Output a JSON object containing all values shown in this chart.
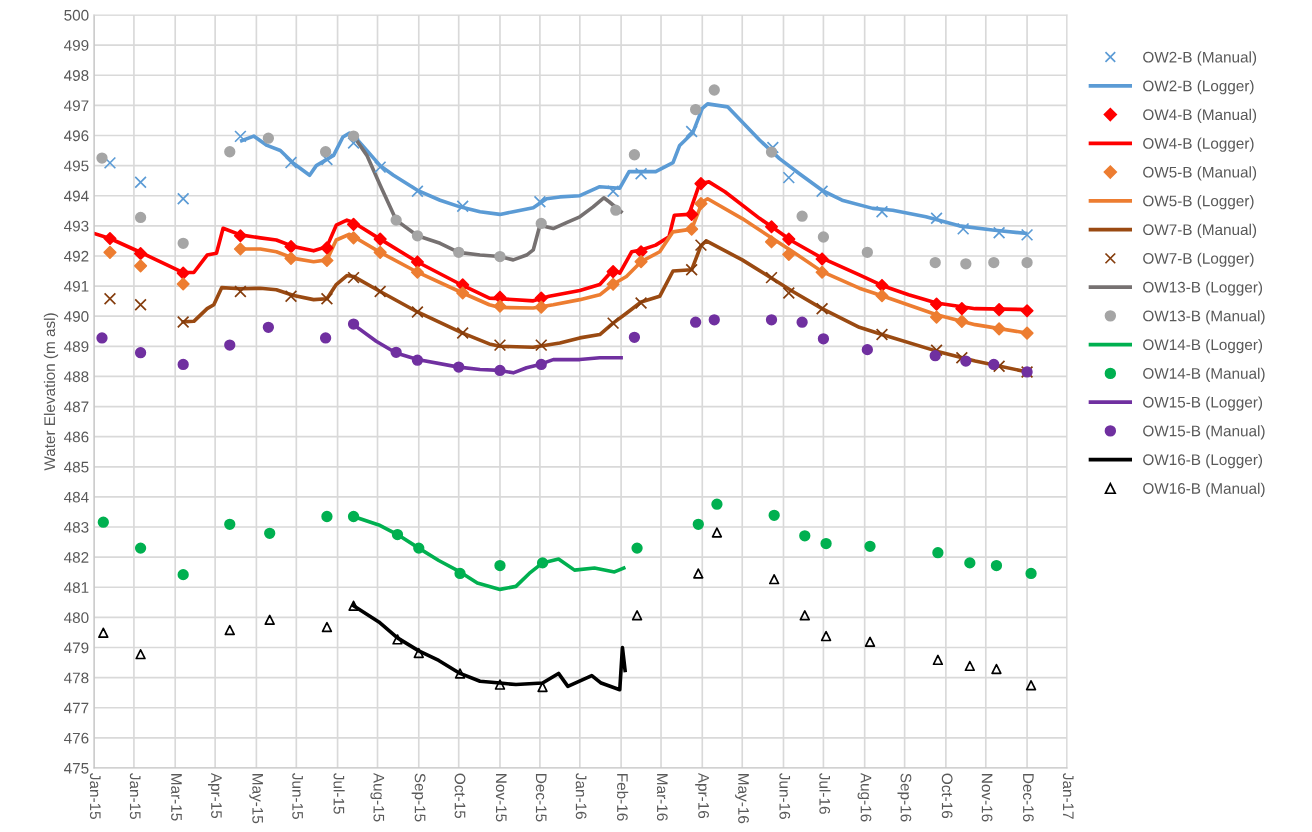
{
  "chart_data": {
    "type": "line",
    "ylabel": "Water Elevation (m asl)",
    "xlim": [
      "2015-01-01",
      "2017-01-01"
    ],
    "xticks": [
      {
        "value": "2015-01-01",
        "label": "Jan-15"
      },
      {
        "value": "2015-01-31",
        "label": "Jan-15"
      },
      {
        "value": "2015-03-03",
        "label": "Mar-15"
      },
      {
        "value": "2015-04-02",
        "label": "Apr-15"
      },
      {
        "value": "2015-05-03",
        "label": "May-15"
      },
      {
        "value": "2015-06-02",
        "label": "Jun-15"
      },
      {
        "value": "2015-07-03",
        "label": "Jul-15"
      },
      {
        "value": "2015-08-02",
        "label": "Aug-15"
      },
      {
        "value": "2015-09-02",
        "label": "Sep-15"
      },
      {
        "value": "2015-10-02",
        "label": "Oct-15"
      },
      {
        "value": "2015-11-02",
        "label": "Nov-15"
      },
      {
        "value": "2015-12-02",
        "label": "Dec-15"
      },
      {
        "value": "2016-01-01",
        "label": "Jan-16"
      },
      {
        "value": "2016-02-01",
        "label": "Feb-16"
      },
      {
        "value": "2016-03-02",
        "label": "Mar-16"
      },
      {
        "value": "2016-04-02",
        "label": "Apr-16"
      },
      {
        "value": "2016-05-02",
        "label": "May-16"
      },
      {
        "value": "2016-06-02",
        "label": "Jun-16"
      },
      {
        "value": "2016-07-02",
        "label": "Jul-16"
      },
      {
        "value": "2016-08-02",
        "label": "Aug-16"
      },
      {
        "value": "2016-09-01",
        "label": "Sep-16"
      },
      {
        "value": "2016-10-02",
        "label": "Oct-16"
      },
      {
        "value": "2016-11-01",
        "label": "Nov-16"
      },
      {
        "value": "2016-12-02",
        "label": "Dec-16"
      },
      {
        "value": "2017-01-01",
        "label": "Jan-17"
      }
    ],
    "ylim": [
      475,
      500
    ],
    "yticks": [
      475,
      476,
      477,
      478,
      479,
      480,
      481,
      482,
      483,
      484,
      485,
      486,
      487,
      488,
      489,
      490,
      491,
      492,
      493,
      494,
      495,
      496,
      497,
      498,
      499,
      500
    ],
    "grid": true,
    "legend": "right",
    "series": [
      {
        "name": "OW2-B (Manual)",
        "type": "scatter",
        "marker": "cross",
        "color": "#5b9bd5",
        "x": [
          "2015-01-13",
          "2015-02-05",
          "2015-03-09",
          "2015-04-21",
          "2015-05-29",
          "2015-06-25",
          "2015-07-15",
          "2015-08-04",
          "2015-09-01",
          "2015-10-05",
          "2015-12-02",
          "2016-01-26",
          "2016-02-16",
          "2016-03-25",
          "2016-05-25",
          "2016-06-06",
          "2016-07-01",
          "2016-08-15",
          "2016-09-25",
          "2016-10-15",
          "2016-11-11",
          "2016-12-02"
        ],
        "values": [
          495.09,
          494.45,
          493.9,
          495.97,
          495.1,
          495.2,
          495.75,
          494.95,
          494.15,
          493.65,
          493.8,
          494.15,
          494.73,
          496.13,
          495.6,
          494.6,
          494.15,
          493.47,
          493.25,
          492.9,
          492.77,
          492.7
        ]
      },
      {
        "name": "OW2-B (Logger)",
        "type": "line",
        "color": "#5b9bd5",
        "x": [
          "2015-04-22",
          "2015-05-01",
          "2015-05-11",
          "2015-05-21",
          "2015-05-31",
          "2015-06-12",
          "2015-06-17",
          "2015-06-30",
          "2015-07-07",
          "2015-07-12",
          "2015-07-17",
          "2015-08-04",
          "2015-08-14",
          "2015-09-01",
          "2015-09-18",
          "2015-10-03",
          "2015-10-18",
          "2015-11-02",
          "2015-11-12",
          "2015-11-27",
          "2015-12-07",
          "2015-12-17",
          "2016-01-01",
          "2016-01-16",
          "2016-01-31",
          "2016-02-07",
          "2016-02-27",
          "2016-03-11",
          "2016-03-16",
          "2016-03-26",
          "2016-04-02",
          "2016-04-06",
          "2016-04-21",
          "2016-05-02",
          "2016-05-15",
          "2016-05-30",
          "2016-06-14",
          "2016-07-01",
          "2016-07-16",
          "2016-08-08",
          "2016-08-23",
          "2016-09-17",
          "2016-10-12",
          "2016-11-06",
          "2016-12-01"
        ],
        "values": [
          495.83,
          495.98,
          495.67,
          495.5,
          495.07,
          494.68,
          495.0,
          495.34,
          495.95,
          496.08,
          495.9,
          495.0,
          494.68,
          494.18,
          493.85,
          493.63,
          493.47,
          493.38,
          493.47,
          493.6,
          493.9,
          493.96,
          494.0,
          494.3,
          494.25,
          494.8,
          494.8,
          495.1,
          495.67,
          496.1,
          496.9,
          497.05,
          496.95,
          496.45,
          495.85,
          495.23,
          494.73,
          494.18,
          493.85,
          493.58,
          493.52,
          493.3,
          493.0,
          492.86,
          492.75
        ]
      },
      {
        "name": "OW4-B (Manual)",
        "type": "scatter",
        "marker": "diamond",
        "color": "#ff0000",
        "x": [
          "2015-01-13",
          "2015-02-05",
          "2015-03-09",
          "2015-04-21",
          "2015-05-29",
          "2015-06-25",
          "2015-07-15",
          "2015-08-04",
          "2015-09-01",
          "2015-10-05",
          "2015-11-02",
          "2015-12-03",
          "2016-01-26",
          "2016-02-16",
          "2016-03-25",
          "2016-04-01",
          "2016-05-24",
          "2016-06-06",
          "2016-07-01",
          "2016-08-15",
          "2016-09-25",
          "2016-10-14",
          "2016-11-11",
          "2016-12-02"
        ],
        "values": [
          492.58,
          492.08,
          491.43,
          492.67,
          492.31,
          492.27,
          493.05,
          492.56,
          491.8,
          491.04,
          490.63,
          490.6,
          491.48,
          492.14,
          493.38,
          494.4,
          492.97,
          492.56,
          491.9,
          491.02,
          490.4,
          490.25,
          490.22,
          490.18
        ]
      },
      {
        "name": "OW4-B (Logger)",
        "type": "line",
        "color": "#ff0000",
        "x": [
          "2015-01-01",
          "2015-01-13",
          "2015-02-04",
          "2015-02-20",
          "2015-03-09",
          "2015-03-17",
          "2015-03-27",
          "2015-04-03",
          "2015-04-08",
          "2015-04-21",
          "2015-05-06",
          "2015-05-18",
          "2015-05-31",
          "2015-06-15",
          "2015-06-25",
          "2015-07-02",
          "2015-07-10",
          "2015-07-15",
          "2015-08-04",
          "2015-09-01",
          "2015-10-05",
          "2015-10-25",
          "2015-11-02",
          "2015-11-27",
          "2015-12-09",
          "2016-01-01",
          "2016-01-16",
          "2016-01-26",
          "2016-01-31",
          "2016-02-09",
          "2016-02-16",
          "2016-02-27",
          "2016-03-08",
          "2016-03-12",
          "2016-03-23",
          "2016-03-31",
          "2016-04-07",
          "2016-04-19",
          "2016-05-15",
          "2016-06-09",
          "2016-07-01",
          "2016-07-29",
          "2016-08-15",
          "2016-09-04",
          "2016-09-25",
          "2016-10-24",
          "2016-12-02"
        ],
        "values": [
          492.75,
          492.58,
          492.14,
          491.8,
          491.45,
          491.45,
          492.03,
          492.09,
          492.92,
          492.7,
          492.6,
          492.53,
          492.31,
          492.17,
          492.31,
          493.02,
          493.19,
          493.11,
          492.56,
          491.8,
          491.02,
          490.6,
          490.58,
          490.51,
          490.66,
          490.85,
          491.05,
          491.54,
          491.43,
          492.14,
          492.2,
          492.36,
          492.64,
          493.35,
          493.38,
          494.4,
          494.46,
          494.13,
          493.25,
          492.48,
          491.93,
          491.37,
          491.02,
          490.71,
          490.44,
          490.25,
          490.22
        ]
      },
      {
        "name": "OW5-B (Manual)",
        "type": "scatter",
        "marker": "diamond",
        "color": "#ed7d31",
        "x": [
          "2015-01-13",
          "2015-02-05",
          "2015-03-09",
          "2015-04-21",
          "2015-05-29",
          "2015-06-25",
          "2015-07-15",
          "2015-08-04",
          "2015-09-01",
          "2015-10-05",
          "2015-11-02",
          "2015-12-03",
          "2016-01-26",
          "2016-02-16",
          "2016-03-25",
          "2016-04-01",
          "2016-05-24",
          "2016-06-06",
          "2016-07-01",
          "2016-08-15",
          "2016-09-25",
          "2016-10-14",
          "2016-11-11",
          "2016-12-02"
        ],
        "values": [
          492.12,
          491.67,
          491.07,
          492.23,
          491.92,
          491.85,
          492.6,
          492.12,
          491.46,
          490.77,
          490.33,
          490.3,
          491.06,
          491.81,
          492.89,
          493.74,
          492.47,
          492.05,
          491.46,
          490.68,
          489.97,
          489.83,
          489.58,
          489.44
        ]
      },
      {
        "name": "OW5-B (Logger)",
        "type": "line",
        "color": "#ed7d31",
        "x": [
          "2015-04-21",
          "2015-05-06",
          "2015-05-18",
          "2015-05-31",
          "2015-06-15",
          "2015-06-25",
          "2015-07-02",
          "2015-07-12",
          "2015-08-04",
          "2015-09-01",
          "2015-10-05",
          "2015-10-25",
          "2015-11-02",
          "2015-11-27",
          "2015-12-12",
          "2016-01-01",
          "2016-01-16",
          "2016-01-26",
          "2016-02-05",
          "2016-02-16",
          "2016-03-01",
          "2016-03-11",
          "2016-03-25",
          "2016-04-02",
          "2016-04-06",
          "2016-05-02",
          "2016-06-09",
          "2016-07-01",
          "2016-07-29",
          "2016-08-15",
          "2016-09-25",
          "2016-10-24",
          "2016-12-02"
        ],
        "values": [
          492.23,
          492.23,
          492.14,
          491.92,
          491.81,
          491.87,
          492.53,
          492.72,
          492.12,
          491.46,
          490.77,
          490.38,
          490.29,
          490.27,
          490.38,
          490.55,
          490.71,
          491.06,
          491.32,
          491.81,
          492.14,
          492.8,
          492.89,
          493.79,
          493.9,
          493.24,
          492.14,
          491.48,
          490.93,
          490.68,
          490.05,
          489.72,
          489.44
        ]
      },
      {
        "name": "OW7-B (Manual)",
        "type": "line",
        "color": "#9a4a12",
        "x": [
          "2015-03-09",
          "2015-03-17",
          "2015-03-27",
          "2015-04-01",
          "2015-04-07",
          "2015-04-21",
          "2015-05-06",
          "2015-05-18",
          "2015-05-31",
          "2015-06-15",
          "2015-06-25",
          "2015-07-02",
          "2015-07-10",
          "2015-07-15",
          "2015-08-04",
          "2015-09-01",
          "2015-10-05",
          "2015-10-25",
          "2015-11-02",
          "2015-11-27",
          "2015-12-17",
          "2016-01-01",
          "2016-01-16",
          "2016-01-26",
          "2016-02-05",
          "2016-02-16",
          "2016-03-01",
          "2016-03-11",
          "2016-03-25",
          "2016-04-01",
          "2016-04-05",
          "2016-05-02",
          "2016-06-09",
          "2016-07-01",
          "2016-07-29",
          "2016-08-15",
          "2016-09-25",
          "2016-10-24",
          "2016-12-02"
        ],
        "values": [
          489.81,
          489.83,
          490.25,
          490.38,
          490.95,
          490.91,
          490.93,
          490.88,
          490.69,
          490.55,
          490.58,
          491.05,
          491.35,
          491.32,
          490.82,
          490.14,
          489.44,
          489.08,
          489.0,
          488.97,
          489.11,
          489.28,
          489.39,
          489.77,
          490.1,
          490.47,
          490.66,
          491.5,
          491.54,
          492.34,
          492.5,
          491.87,
          490.82,
          490.25,
          489.63,
          489.39,
          488.84,
          488.51,
          488.15
        ]
      },
      {
        "name": "OW7-B (Logger)",
        "type": "scatter",
        "marker": "cross",
        "color": "#843c0c",
        "x": [
          "2015-01-13",
          "2015-02-05",
          "2015-03-09",
          "2015-04-21",
          "2015-05-29",
          "2015-06-25",
          "2015-07-15",
          "2015-08-04",
          "2015-09-01",
          "2015-10-05",
          "2015-11-02",
          "2015-12-03",
          "2016-01-26",
          "2016-02-16",
          "2016-03-25",
          "2016-04-01",
          "2016-05-24",
          "2016-06-06",
          "2016-07-01",
          "2016-08-15",
          "2016-09-25",
          "2016-10-14",
          "2016-11-11",
          "2016-12-02"
        ],
        "values": [
          490.58,
          490.38,
          489.81,
          490.82,
          490.66,
          490.58,
          491.28,
          490.82,
          490.14,
          489.44,
          489.04,
          489.04,
          489.77,
          490.44,
          491.54,
          492.36,
          491.28,
          490.77,
          490.25,
          489.39,
          488.87,
          488.62,
          488.34,
          488.15
        ]
      },
      {
        "name": "OW13-B (Logger)",
        "type": "line",
        "color": "#767171",
        "x": [
          "2015-07-15",
          "2015-07-25",
          "2015-08-04",
          "2015-08-16",
          "2015-09-01",
          "2015-09-18",
          "2015-10-02",
          "2015-10-18",
          "2015-11-02",
          "2015-11-12",
          "2015-11-22",
          "2015-11-27",
          "2015-12-02",
          "2015-12-12",
          "2015-12-22",
          "2016-01-01",
          "2016-01-11",
          "2016-01-19",
          "2016-01-23",
          "2016-02-01"
        ],
        "values": [
          495.98,
          495.34,
          494.35,
          493.19,
          492.67,
          492.42,
          492.12,
          492.03,
          491.98,
          491.87,
          492.03,
          492.2,
          493.02,
          492.91,
          493.11,
          493.3,
          493.63,
          493.93,
          493.8,
          493.47
        ]
      },
      {
        "name": "OW13-B (Manual)",
        "type": "scatter",
        "marker": "circle",
        "color": "#a5a5a5",
        "x": [
          "2015-01-07",
          "2015-02-05",
          "2015-03-09",
          "2015-04-13",
          "2015-05-12",
          "2015-06-24",
          "2015-07-15",
          "2015-08-16",
          "2015-09-01",
          "2015-10-02",
          "2015-11-02",
          "2015-12-03",
          "2016-01-28",
          "2016-02-11",
          "2016-03-28",
          "2016-04-11",
          "2016-05-24",
          "2016-06-16",
          "2016-07-02",
          "2016-08-04",
          "2016-09-24",
          "2016-10-17",
          "2016-11-07",
          "2016-12-02"
        ],
        "values": [
          495.25,
          493.28,
          492.42,
          495.46,
          495.91,
          495.46,
          495.98,
          493.19,
          492.67,
          492.12,
          491.98,
          493.08,
          493.52,
          495.36,
          496.86,
          497.51,
          495.45,
          493.32,
          492.63,
          492.12,
          491.78,
          491.74,
          491.78,
          491.78
        ]
      },
      {
        "name": "OW14-B (Logger)",
        "type": "line",
        "color": "#00b050",
        "x": [
          "2015-07-15",
          "2015-08-03",
          "2015-08-17",
          "2015-09-02",
          "2015-09-17",
          "2015-10-03",
          "2015-10-16",
          "2015-11-02",
          "2015-11-14",
          "2015-11-24",
          "2015-12-04",
          "2015-12-16",
          "2015-12-28",
          "2016-01-12",
          "2016-01-27",
          "2016-02-03"
        ],
        "values": [
          483.35,
          483.07,
          482.75,
          482.3,
          481.89,
          481.51,
          481.14,
          480.93,
          481.03,
          481.46,
          481.81,
          481.94,
          481.57,
          481.64,
          481.51,
          481.64
        ]
      },
      {
        "name": "OW14-B (Manual)",
        "type": "scatter",
        "marker": "circle",
        "color": "#00b050",
        "x": [
          "2015-01-08",
          "2015-02-05",
          "2015-03-09",
          "2015-04-13",
          "2015-05-13",
          "2015-06-25",
          "2015-07-15",
          "2015-08-17",
          "2015-09-02",
          "2015-10-03",
          "2015-11-02",
          "2015-12-04",
          "2016-02-13",
          "2016-03-30",
          "2016-04-13",
          "2016-05-26",
          "2016-06-18",
          "2016-07-04",
          "2016-08-06",
          "2016-09-26",
          "2016-10-20",
          "2016-11-09",
          "2016-12-05"
        ],
        "values": [
          483.16,
          482.3,
          481.42,
          483.09,
          482.79,
          483.35,
          483.35,
          482.75,
          482.3,
          481.46,
          481.72,
          481.81,
          482.3,
          483.09,
          483.76,
          483.39,
          482.71,
          482.45,
          482.36,
          482.15,
          481.81,
          481.72,
          481.46
        ]
      },
      {
        "name": "OW15-B (Logger)",
        "type": "line",
        "color": "#7030a0",
        "x": [
          "2015-07-15",
          "2015-08-01",
          "2015-08-16",
          "2015-09-01",
          "2015-10-02",
          "2015-10-18",
          "2015-11-02",
          "2015-11-12",
          "2015-11-22",
          "2015-12-02",
          "2015-12-12",
          "2016-01-01",
          "2016-01-16",
          "2016-02-01"
        ],
        "values": [
          489.72,
          489.17,
          488.78,
          488.56,
          488.31,
          488.23,
          488.2,
          488.12,
          488.29,
          488.4,
          488.56,
          488.56,
          488.62,
          488.62
        ]
      },
      {
        "name": "OW15-B (Manual)",
        "type": "scatter",
        "marker": "circle",
        "color": "#7030a0",
        "x": [
          "2015-01-07",
          "2015-02-05",
          "2015-03-09",
          "2015-04-13",
          "2015-05-12",
          "2015-06-24",
          "2015-07-15",
          "2015-08-16",
          "2015-09-01",
          "2015-10-02",
          "2015-11-02",
          "2015-12-03",
          "2016-02-11",
          "2016-03-28",
          "2016-04-11",
          "2016-05-24",
          "2016-06-16",
          "2016-07-02",
          "2016-08-04",
          "2016-09-24",
          "2016-10-17",
          "2016-11-07",
          "2016-12-02"
        ],
        "values": [
          489.28,
          488.79,
          488.4,
          489.04,
          489.63,
          489.28,
          489.74,
          488.8,
          488.54,
          488.31,
          488.2,
          488.4,
          489.3,
          489.8,
          489.88,
          489.88,
          489.8,
          489.25,
          488.89,
          488.69,
          488.51,
          488.4,
          488.15
        ]
      },
      {
        "name": "OW16-B (Logger)",
        "type": "line",
        "color": "#000000",
        "x": [
          "2015-07-15",
          "2015-08-03",
          "2015-08-17",
          "2015-09-02",
          "2015-09-17",
          "2015-10-03",
          "2015-10-18",
          "2015-11-02",
          "2015-11-14",
          "2015-12-04",
          "2015-12-16",
          "2015-12-23",
          "2016-01-10",
          "2016-01-17",
          "2016-01-31",
          "2016-02-02",
          "2016-02-04"
        ],
        "values": [
          480.39,
          479.85,
          479.32,
          478.89,
          478.57,
          478.14,
          477.88,
          477.82,
          477.77,
          477.82,
          478.14,
          477.71,
          478.07,
          477.82,
          477.6,
          479.0,
          478.24
        ]
      },
      {
        "name": "OW16-B (Manual)",
        "type": "scatter",
        "marker": "triangle",
        "color": "#000000",
        "x": [
          "2015-01-08",
          "2015-02-05",
          "2015-04-13",
          "2015-05-13",
          "2015-06-25",
          "2015-07-15",
          "2015-08-17",
          "2015-09-02",
          "2015-10-03",
          "2015-11-02",
          "2015-12-04",
          "2016-02-13",
          "2016-03-30",
          "2016-04-13",
          "2016-05-26",
          "2016-06-18",
          "2016-07-04",
          "2016-08-06",
          "2016-09-26",
          "2016-10-20",
          "2016-11-09",
          "2016-12-05"
        ],
        "values": [
          479.49,
          478.78,
          479.58,
          479.92,
          479.68,
          480.39,
          479.27,
          478.82,
          478.14,
          477.77,
          477.69,
          480.07,
          481.46,
          482.82,
          481.27,
          480.07,
          479.38,
          479.19,
          478.59,
          478.39,
          478.29,
          477.75
        ]
      }
    ]
  }
}
